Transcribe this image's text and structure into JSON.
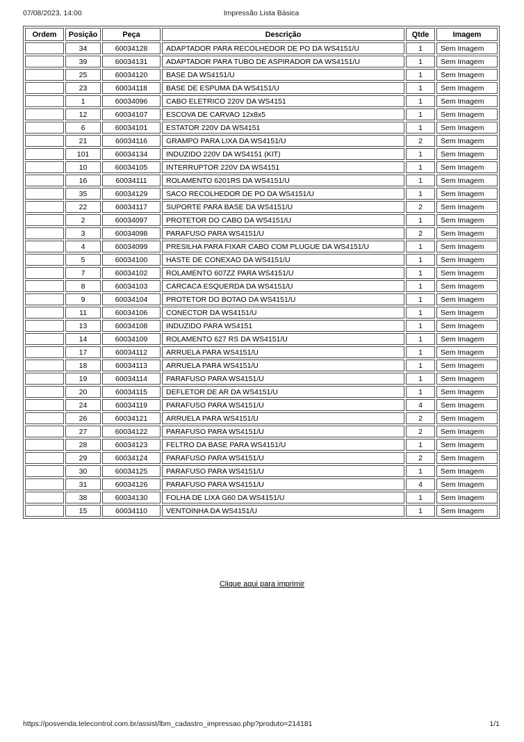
{
  "page_header": {
    "datetime": "07/08/2023, 14:00",
    "title": "Impressão Lista Básica"
  },
  "table": {
    "columns": [
      "Ordem",
      "Posição",
      "Peça",
      "Descrição",
      "Qtde",
      "Imagem"
    ],
    "rows": [
      {
        "ordem": "",
        "posicao": "34",
        "peca": "60034128",
        "descricao": "ADAPTADOR PARA RECOLHEDOR DE PO DA WS4151/U",
        "qtde": "1",
        "imagem": "Sem Imagem"
      },
      {
        "ordem": "",
        "posicao": "39",
        "peca": "60034131",
        "descricao": "ADAPTADOR PARA TUBO DE ASPIRADOR DA WS4151/U",
        "qtde": "1",
        "imagem": "Sem Imagem"
      },
      {
        "ordem": "",
        "posicao": "25",
        "peca": "60034120",
        "descricao": "BASE DA WS4151/U",
        "qtde": "1",
        "imagem": "Sem Imagem"
      },
      {
        "ordem": "",
        "posicao": "23",
        "peca": "60034118",
        "descricao": "BASE DE ESPUMA DA WS4151/U",
        "qtde": "1",
        "imagem": "Sem Imagem"
      },
      {
        "ordem": "",
        "posicao": "1",
        "peca": "60034096",
        "descricao": "CABO ELETRICO 220V DA WS4151",
        "qtde": "1",
        "imagem": "Sem Imagem"
      },
      {
        "ordem": "",
        "posicao": "12",
        "peca": "60034107",
        "descricao": "ESCOVA DE CARVAO 12x8x5",
        "qtde": "1",
        "imagem": "Sem Imagem"
      },
      {
        "ordem": "",
        "posicao": "6",
        "peca": "60034101",
        "descricao": "ESTATOR 220V DA WS4151",
        "qtde": "1",
        "imagem": "Sem Imagem"
      },
      {
        "ordem": "",
        "posicao": "21",
        "peca": "60034116",
        "descricao": "GRAMPO PARA LIXA DA WS4151/U",
        "qtde": "2",
        "imagem": "Sem Imagem"
      },
      {
        "ordem": "",
        "posicao": "101",
        "peca": "60034134",
        "descricao": "INDUZIDO 220V DA WS4151 (KIT)",
        "qtde": "1",
        "imagem": "Sem Imagem"
      },
      {
        "ordem": "",
        "posicao": "10",
        "peca": "60034105",
        "descricao": "INTERRUPTOR 220V DA WS4151",
        "qtde": "1",
        "imagem": "Sem Imagem"
      },
      {
        "ordem": "",
        "posicao": "16",
        "peca": "60034111",
        "descricao": "ROLAMENTO 6201RS DA WS4151/U",
        "qtde": "1",
        "imagem": "Sem Imagem"
      },
      {
        "ordem": "",
        "posicao": "35",
        "peca": "60034129",
        "descricao": "SACO RECOLHEDOR DE PO DA WS4151/U",
        "qtde": "1",
        "imagem": "Sem Imagem"
      },
      {
        "ordem": "",
        "posicao": "22",
        "peca": "60034117",
        "descricao": "SUPORTE PARA BASE DA WS4151/U",
        "qtde": "2",
        "imagem": "Sem Imagem"
      },
      {
        "ordem": "",
        "posicao": "2",
        "peca": "60034097",
        "descricao": "PROTETOR DO CABO DA WS4151/U",
        "qtde": "1",
        "imagem": "Sem Imagem"
      },
      {
        "ordem": "",
        "posicao": "3",
        "peca": "60034098",
        "descricao": "PARAFUSO PARA WS4151/U",
        "qtde": "2",
        "imagem": "Sem Imagem"
      },
      {
        "ordem": "",
        "posicao": "4",
        "peca": "60034099",
        "descricao": "PRESILHA PARA FIXAR CABO COM PLUGUE DA WS4151/U",
        "qtde": "1",
        "imagem": "Sem Imagem"
      },
      {
        "ordem": "",
        "posicao": "5",
        "peca": "60034100",
        "descricao": "HASTE DE CONEXAO DA WS4151/U",
        "qtde": "1",
        "imagem": "Sem Imagem"
      },
      {
        "ordem": "",
        "posicao": "7",
        "peca": "60034102",
        "descricao": "ROLAMENTO 607ZZ PARA WS4151/U",
        "qtde": "1",
        "imagem": "Sem Imagem"
      },
      {
        "ordem": "",
        "posicao": "8",
        "peca": "60034103",
        "descricao": "CARCACA ESQUERDA DA WS4151/U",
        "qtde": "1",
        "imagem": "Sem Imagem"
      },
      {
        "ordem": "",
        "posicao": "9",
        "peca": "60034104",
        "descricao": "PROTETOR DO BOTAO DA WS4151/U",
        "qtde": "1",
        "imagem": "Sem Imagem"
      },
      {
        "ordem": "",
        "posicao": "11",
        "peca": "60034106",
        "descricao": "CONECTOR DA WS4151/U",
        "qtde": "1",
        "imagem": "Sem Imagem"
      },
      {
        "ordem": "",
        "posicao": "13",
        "peca": "60034108",
        "descricao": "INDUZIDO PARA WS4151",
        "qtde": "1",
        "imagem": "Sem Imagem"
      },
      {
        "ordem": "",
        "posicao": "14",
        "peca": "60034109",
        "descricao": "ROLAMENTO 627 RS DA WS4151/U",
        "qtde": "1",
        "imagem": "Sem Imagem"
      },
      {
        "ordem": "",
        "posicao": "17",
        "peca": "60034112",
        "descricao": "ARRUELA PARA WS4151/U",
        "qtde": "1",
        "imagem": "Sem Imagem"
      },
      {
        "ordem": "",
        "posicao": "18",
        "peca": "60034113",
        "descricao": "ARRUELA PARA WS4151/U",
        "qtde": "1",
        "imagem": "Sem Imagem"
      },
      {
        "ordem": "",
        "posicao": "19",
        "peca": "60034114",
        "descricao": "PARAFUSO PARA WS4151/U",
        "qtde": "1",
        "imagem": "Sem Imagem"
      },
      {
        "ordem": "",
        "posicao": "20",
        "peca": "60034115",
        "descricao": "DEFLETOR DE AR DA WS4151/U",
        "qtde": "1",
        "imagem": "Sem Imagem"
      },
      {
        "ordem": "",
        "posicao": "24",
        "peca": "60034119",
        "descricao": "PARAFUSO PARA WS4151/U",
        "qtde": "4",
        "imagem": "Sem Imagem"
      },
      {
        "ordem": "",
        "posicao": "26",
        "peca": "60034121",
        "descricao": "ARRUELA PARA WS4151/U",
        "qtde": "2",
        "imagem": "Sem Imagem"
      },
      {
        "ordem": "",
        "posicao": "27",
        "peca": "60034122",
        "descricao": "PARAFUSO PARA WS4151/U",
        "qtde": "2",
        "imagem": "Sem Imagem"
      },
      {
        "ordem": "",
        "posicao": "28",
        "peca": "60034123",
        "descricao": "FELTRO DA BASE PARA WS4151/U",
        "qtde": "1",
        "imagem": "Sem Imagem"
      },
      {
        "ordem": "",
        "posicao": "29",
        "peca": "60034124",
        "descricao": "PARAFUSO PARA WS4151/U",
        "qtde": "2",
        "imagem": "Sem Imagem"
      },
      {
        "ordem": "",
        "posicao": "30",
        "peca": "60034125",
        "descricao": "PARAFUSO PARA WS4151/U",
        "qtde": "1",
        "imagem": "Sem Imagem"
      },
      {
        "ordem": "",
        "posicao": "31",
        "peca": "60034126",
        "descricao": "PARAFUSO PARA WS4151/U",
        "qtde": "4",
        "imagem": "Sem Imagem"
      },
      {
        "ordem": "",
        "posicao": "38",
        "peca": "60034130",
        "descricao": "FOLHA DE LIXA G60 DA WS4151/U",
        "qtde": "1",
        "imagem": "Sem Imagem"
      },
      {
        "ordem": "",
        "posicao": "15",
        "peca": "60034110",
        "descricao": "VENTOINHA DA WS4151/U",
        "qtde": "1",
        "imagem": "Sem Imagem"
      }
    ]
  },
  "print_link": {
    "label": "Clique aqui para imprimir"
  },
  "page_footer": {
    "url": "https://posvenda.telecontrol.com.br/assist/lbm_cadastro_impressao.php?produto=214181",
    "page_indicator": "1/1"
  },
  "colors": {
    "border": "#4a4a4a",
    "text": "#000000",
    "background": "#ffffff"
  }
}
